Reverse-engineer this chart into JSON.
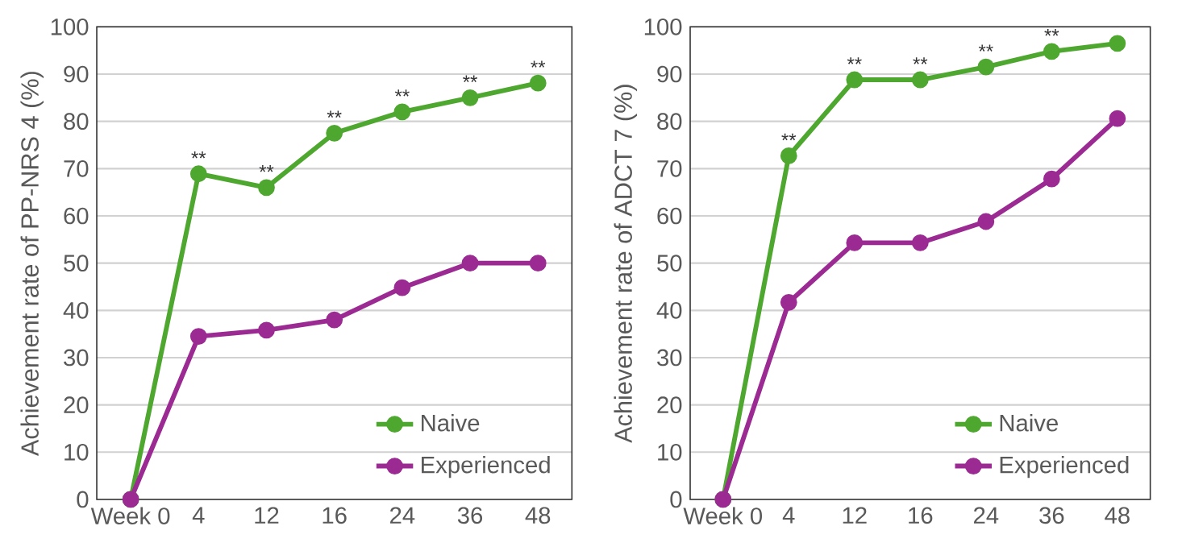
{
  "chart_data": [
    {
      "type": "line",
      "ylabel": "Achievement rate of PP-NRS 4 (%)",
      "categories": [
        "Week 0",
        "4",
        "12",
        "16",
        "24",
        "36",
        "48"
      ],
      "series": [
        {
          "name": "Naive",
          "color": "#4ea72e",
          "values": [
            0,
            68.9,
            66.0,
            77.5,
            82.0,
            85.0,
            88.1
          ]
        },
        {
          "name": "Experienced",
          "color": "#9b2a93",
          "values": [
            0,
            34.5,
            35.8,
            38.0,
            44.8,
            50.0,
            50.0
          ]
        }
      ],
      "ylim": [
        0,
        100
      ],
      "yticks": [
        0,
        10,
        20,
        30,
        40,
        50,
        60,
        70,
        80,
        90,
        100
      ],
      "grid": "y",
      "legend": "bottom right",
      "marker": "circle",
      "line_style": "solid",
      "annotations": [
        {
          "text": "**",
          "x": "4",
          "y": 68.9
        },
        {
          "text": "**",
          "x": "12",
          "y": 66.0
        },
        {
          "text": "**",
          "x": "16",
          "y": 77.5
        },
        {
          "text": "**",
          "x": "24",
          "y": 82.0
        },
        {
          "text": "**",
          "x": "36",
          "y": 85.0
        },
        {
          "text": "**",
          "x": "48",
          "y": 88.1
        }
      ]
    },
    {
      "type": "line",
      "ylabel": "Achievement rate of ADCT 7 (%)",
      "categories": [
        "Week 0",
        "4",
        "12",
        "16",
        "24",
        "36",
        "48"
      ],
      "series": [
        {
          "name": "Naive",
          "color": "#4ea72e",
          "values": [
            0,
            72.7,
            88.8,
            88.8,
            91.5,
            94.8,
            96.5
          ]
        },
        {
          "name": "Experienced",
          "color": "#9b2a93",
          "values": [
            0,
            41.7,
            54.3,
            54.3,
            58.8,
            67.8,
            80.6
          ]
        }
      ],
      "ylim": [
        0,
        100
      ],
      "yticks": [
        0,
        10,
        20,
        30,
        40,
        50,
        60,
        70,
        80,
        90,
        100
      ],
      "grid": "y",
      "legend": "bottom right",
      "marker": "circle",
      "line_style": "solid",
      "annotations": [
        {
          "text": "**",
          "x": "4",
          "y": 72.7
        },
        {
          "text": "**",
          "x": "12",
          "y": 88.8
        },
        {
          "text": "**",
          "x": "16",
          "y": 88.8
        },
        {
          "text": "**",
          "x": "24",
          "y": 91.5
        },
        {
          "text": "**",
          "x": "36",
          "y": 94.8
        }
      ]
    }
  ]
}
